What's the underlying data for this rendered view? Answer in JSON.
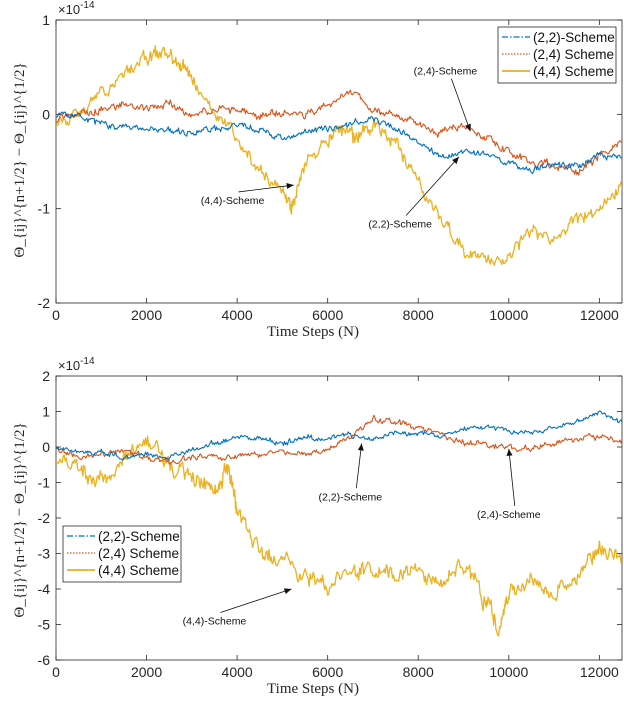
{
  "chart_data": [
    {
      "type": "line",
      "xlabel": "Time Steps (N)",
      "ylabel": "Θ_{ij}^{n+1/2} − Θ_{ij}^{1/2}",
      "exponent_label": "×10",
      "exponent_power": "-14",
      "xlim": [
        0,
        12500
      ],
      "ylim": [
        -2,
        1
      ],
      "x_ticks": [
        "0",
        "2000",
        "4000",
        "6000",
        "8000",
        "10000",
        "12000"
      ],
      "y_ticks": [
        "-2",
        "-1",
        "0",
        "1"
      ],
      "legend_position": "top-right",
      "legend": [
        "(2,2)-Scheme",
        "(2,4) Scheme",
        "(4,4) Scheme"
      ],
      "series": [
        {
          "name": "(2,2)-Scheme",
          "color": "#0072BD",
          "style": "dash-dot",
          "x": [
            0,
            500,
            1000,
            1500,
            2000,
            2500,
            3000,
            3500,
            4000,
            4500,
            5000,
            5500,
            6000,
            6500,
            7000,
            7500,
            8000,
            8500,
            9000,
            9500,
            10000,
            10500,
            11000,
            11500,
            12000,
            12500
          ],
          "values": [
            0,
            -0.02,
            -0.1,
            -0.12,
            -0.15,
            -0.18,
            -0.2,
            -0.15,
            -0.12,
            -0.15,
            -0.25,
            -0.2,
            -0.15,
            -0.1,
            -0.05,
            -0.15,
            -0.3,
            -0.45,
            -0.38,
            -0.42,
            -0.5,
            -0.6,
            -0.52,
            -0.55,
            -0.42,
            -0.46
          ]
        },
        {
          "name": "(2,4) Scheme",
          "color": "#D95319",
          "style": "dotted",
          "x": [
            0,
            500,
            1000,
            1500,
            2000,
            2500,
            3000,
            3500,
            4000,
            4500,
            5000,
            5500,
            6000,
            6500,
            7000,
            7500,
            8000,
            8500,
            9000,
            9500,
            10000,
            10500,
            11000,
            11500,
            12000,
            12500
          ],
          "values": [
            -0.05,
            0.0,
            0.05,
            0.1,
            0.05,
            0.12,
            0.0,
            0.05,
            0.05,
            -0.02,
            0.0,
            0.0,
            0.1,
            0.25,
            0.05,
            0.0,
            -0.1,
            -0.2,
            -0.15,
            -0.25,
            -0.4,
            -0.5,
            -0.55,
            -0.6,
            -0.45,
            -0.3
          ]
        },
        {
          "name": "(4,4) Scheme",
          "color": "#EDB120",
          "style": "solid",
          "x": [
            0,
            500,
            1000,
            1500,
            2000,
            2300,
            2700,
            3000,
            3500,
            4000,
            4500,
            5000,
            5200,
            5500,
            6000,
            6300,
            6600,
            7000,
            7500,
            8000,
            8500,
            9000,
            9500,
            10000,
            10500,
            11000,
            11500,
            12000,
            12500
          ],
          "values": [
            -0.05,
            0.02,
            0.2,
            0.45,
            0.6,
            0.68,
            0.55,
            0.35,
            0.0,
            -0.25,
            -0.6,
            -0.8,
            -1.0,
            -0.5,
            -0.3,
            -0.15,
            -0.25,
            -0.1,
            -0.3,
            -0.7,
            -1.1,
            -1.45,
            -1.55,
            -1.5,
            -1.2,
            -1.35,
            -1.1,
            -1.0,
            -0.8
          ]
        }
      ],
      "annotations": [
        {
          "text": "(2,4)-Scheme",
          "x": 8600,
          "y": 0.42,
          "ax": 9150,
          "ay": -0.18
        },
        {
          "text": "(4,4)-Scheme",
          "x": 3900,
          "y": -0.95,
          "ax": 5250,
          "ay": -0.75
        },
        {
          "text": "(2,2)-Scheme",
          "x": 7600,
          "y": -1.2,
          "ax": 8900,
          "ay": -0.45
        }
      ]
    },
    {
      "type": "line",
      "xlabel": "Time Steps (N)",
      "ylabel": "Θ_{ij}^{n+1/2} − Θ_{ij}^{1/2}",
      "exponent_label": "×10",
      "exponent_power": "-14",
      "xlim": [
        0,
        12500
      ],
      "ylim": [
        -6,
        2
      ],
      "x_ticks": [
        "0",
        "2000",
        "4000",
        "6000",
        "8000",
        "10000",
        "12000"
      ],
      "y_ticks": [
        "-6",
        "-5",
        "-4",
        "-3",
        "-2",
        "-1",
        "0",
        "1",
        "2"
      ],
      "legend_position": "left",
      "legend": [
        "(2,2)-Scheme",
        "(2,4) Scheme",
        "(4,4) Scheme"
      ],
      "series": [
        {
          "name": "(2,2)-Scheme",
          "color": "#0072BD",
          "style": "dash-dot",
          "x": [
            0,
            500,
            1000,
            1500,
            2000,
            2500,
            3000,
            3500,
            4000,
            4500,
            5000,
            5500,
            6000,
            6500,
            7000,
            7500,
            8000,
            8500,
            9000,
            9500,
            10000,
            10500,
            11000,
            11500,
            12000,
            12500
          ],
          "values": [
            0,
            -0.2,
            -0.1,
            -0.3,
            -0.2,
            -0.3,
            -0.1,
            0.1,
            0.3,
            0.25,
            0.1,
            0.3,
            0.2,
            0.35,
            0.2,
            0.4,
            0.35,
            0.3,
            0.5,
            0.6,
            0.45,
            0.4,
            0.55,
            0.7,
            1.0,
            0.7
          ]
        },
        {
          "name": "(2,4) Scheme",
          "color": "#D95319",
          "style": "dotted",
          "x": [
            0,
            500,
            1000,
            1500,
            2000,
            2500,
            3000,
            3500,
            4000,
            4500,
            5000,
            5500,
            6000,
            6500,
            7000,
            7500,
            8000,
            8500,
            9000,
            9500,
            10000,
            10500,
            11000,
            11500,
            12000,
            12500
          ],
          "values": [
            0,
            -0.3,
            -0.2,
            -0.1,
            -0.3,
            -0.4,
            -0.3,
            -0.25,
            -0.3,
            -0.2,
            -0.1,
            -0.2,
            -0.1,
            0.3,
            0.8,
            0.7,
            0.5,
            0.4,
            0.1,
            0.05,
            0.0,
            -0.05,
            0.1,
            0.2,
            0.3,
            0.2
          ]
        },
        {
          "name": "(4,4) Scheme",
          "color": "#EDB120",
          "style": "solid",
          "x": [
            0,
            500,
            1000,
            1500,
            2000,
            2500,
            3000,
            3500,
            3800,
            4000,
            4500,
            5000,
            5500,
            6000,
            6500,
            7000,
            7500,
            8000,
            8500,
            9000,
            9500,
            9800,
            10000,
            10500,
            11000,
            11500,
            12000,
            12500
          ],
          "values": [
            -0.3,
            -0.6,
            -1.0,
            -0.5,
            0.4,
            -0.6,
            -0.8,
            -1.2,
            -0.6,
            -1.8,
            -2.8,
            -3.3,
            -3.6,
            -3.9,
            -3.3,
            -3.5,
            -3.6,
            -3.5,
            -3.8,
            -3.3,
            -4.4,
            -5.0,
            -4.2,
            -3.7,
            -4.2,
            -3.7,
            -2.8,
            -3.2
          ]
        }
      ],
      "annotations": [
        {
          "text": "(2,2)-Scheme",
          "x": 6500,
          "y": -1.5,
          "ax": 6750,
          "ay": 0.1
        },
        {
          "text": "(2,4)-Scheme",
          "x": 10000,
          "y": -2.0,
          "ax": 10000,
          "ay": -0.05
        },
        {
          "text": "(4,4)-Scheme",
          "x": 3500,
          "y": -5.0,
          "ax": 5200,
          "ay": -4.0
        }
      ]
    }
  ]
}
